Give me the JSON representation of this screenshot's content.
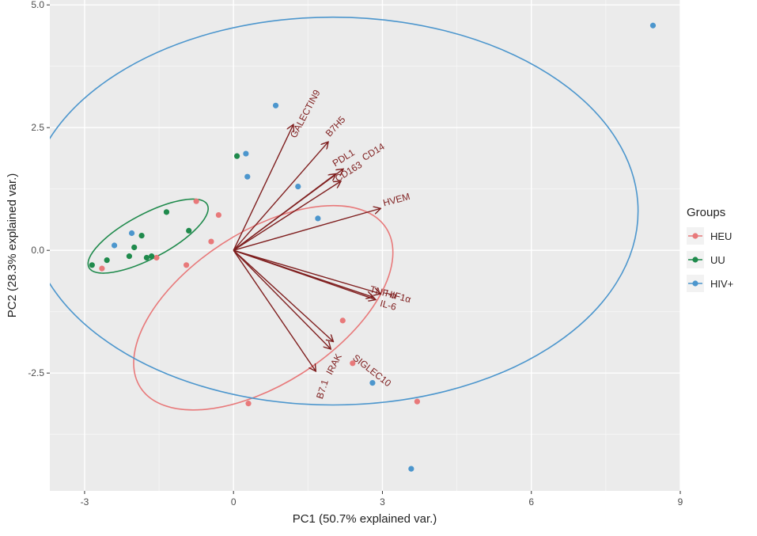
{
  "chart_data": {
    "type": "scatter",
    "subtype": "pca-biplot",
    "xlabel": "PC1 (50.7% explained var.)",
    "ylabel": "PC2 (28.3% explained var.)",
    "xlim": [
      -3.7,
      9.0
    ],
    "ylim": [
      -4.9,
      5.1
    ],
    "xticks": [
      -3,
      0,
      3,
      6,
      9
    ],
    "yticks": [
      -2.5,
      0.0,
      2.5,
      5.0
    ],
    "xtick_labels": [
      "-3",
      "0",
      "3",
      "6",
      "9"
    ],
    "ytick_labels": [
      "-2.5",
      "0.0",
      "2.5",
      "5.0"
    ],
    "legend": {
      "title": "Groups",
      "position": "right",
      "entries": [
        {
          "name": "HEU",
          "color": "#e8797a"
        },
        {
          "name": "UU",
          "color": "#1f8a4c"
        },
        {
          "name": "HIV+",
          "color": "#4c96cd"
        }
      ]
    },
    "series": [
      {
        "name": "HEU",
        "color": "#e8797a",
        "points": [
          [
            -0.75,
            1.0
          ],
          [
            -0.3,
            0.72
          ],
          [
            -0.45,
            0.18
          ],
          [
            -0.95,
            -0.3
          ],
          [
            -1.55,
            -0.15
          ],
          [
            -2.65,
            -0.37
          ],
          [
            2.2,
            -1.43
          ],
          [
            2.4,
            -2.3
          ],
          [
            0.3,
            -3.12
          ],
          [
            3.7,
            -3.08
          ]
        ]
      },
      {
        "name": "UU",
        "color": "#1f8a4c",
        "points": [
          [
            -2.85,
            -0.3
          ],
          [
            -2.55,
            -0.2
          ],
          [
            -1.35,
            0.78
          ],
          [
            -0.9,
            0.4
          ],
          [
            -1.85,
            0.3
          ],
          [
            -2.0,
            0.06
          ],
          [
            -2.1,
            -0.12
          ],
          [
            -1.75,
            -0.15
          ],
          [
            -1.65,
            -0.12
          ],
          [
            0.07,
            1.92
          ]
        ]
      },
      {
        "name": "HIV+",
        "color": "#4c96cd",
        "points": [
          [
            8.45,
            4.58
          ],
          [
            0.85,
            2.95
          ],
          [
            0.25,
            1.97
          ],
          [
            0.28,
            1.5
          ],
          [
            1.3,
            1.3
          ],
          [
            1.7,
            0.65
          ],
          [
            -2.4,
            0.1
          ],
          [
            -2.05,
            0.35
          ],
          [
            2.8,
            -2.7
          ],
          [
            3.58,
            -4.45
          ]
        ]
      }
    ],
    "ellipses": [
      {
        "group": "HEU",
        "color": "#e8797a",
        "center": [
          0.6,
          -1.17
        ],
        "radius_x": 2.95,
        "radius_y": 1.55,
        "rotation_deg": 33
      },
      {
        "group": "UU",
        "color": "#1f8a4c",
        "center": [
          -1.72,
          0.29
        ],
        "radius_x": 1.35,
        "radius_y": 0.45,
        "rotation_deg": 28
      },
      {
        "group": "HIV+",
        "color": "#4c96cd",
        "center": [
          2.0,
          0.8
        ],
        "radius_x": 6.15,
        "radius_y": 3.95,
        "rotation_deg": 0
      }
    ],
    "loadings": [
      {
        "name": "GALECTIN9",
        "x": 1.2,
        "y": 2.55,
        "label_x": 1.5,
        "label_y": 2.75,
        "angle": -62
      },
      {
        "name": "B7H5",
        "x": 1.9,
        "y": 2.2,
        "label_x": 2.1,
        "label_y": 2.48,
        "angle": -47
      },
      {
        "name": "PDL1",
        "x": 2.05,
        "y": 1.55,
        "label_x": 2.25,
        "label_y": 1.83,
        "angle": -32
      },
      {
        "name": "CD14",
        "x": 2.2,
        "y": 1.65,
        "label_x": 2.85,
        "label_y": 1.95,
        "angle": -32
      },
      {
        "name": "CD163",
        "x": 2.15,
        "y": 1.4,
        "label_x": 2.35,
        "label_y": 1.55,
        "angle": -32
      },
      {
        "name": "HVEM",
        "x": 2.95,
        "y": 0.85,
        "label_x": 3.3,
        "label_y": 0.97,
        "angle": -15
      },
      {
        "name": "HIF1α",
        "x": 2.95,
        "y": -0.88,
        "label_x": 3.3,
        "label_y": -1.0,
        "angle": 15
      },
      {
        "name": "IL-6",
        "x": 2.85,
        "y": -1.0,
        "label_x": 3.1,
        "label_y": -1.18,
        "angle": 15
      },
      {
        "name": "TNF-α",
        "x": 2.8,
        "y": -0.95,
        "label_x": 3.0,
        "label_y": -0.92,
        "angle": 15
      },
      {
        "name": "SIGLEC10",
        "x": 2.0,
        "y": -1.85,
        "label_x": 2.75,
        "label_y": -2.5,
        "angle": 38
      },
      {
        "name": "IRAK",
        "x": 1.95,
        "y": -2.0,
        "label_x": 2.08,
        "label_y": -2.35,
        "angle": -62
      },
      {
        "name": "B7.1",
        "x": 1.65,
        "y": -2.45,
        "label_x": 1.85,
        "label_y": -2.85,
        "angle": -72
      }
    ]
  }
}
